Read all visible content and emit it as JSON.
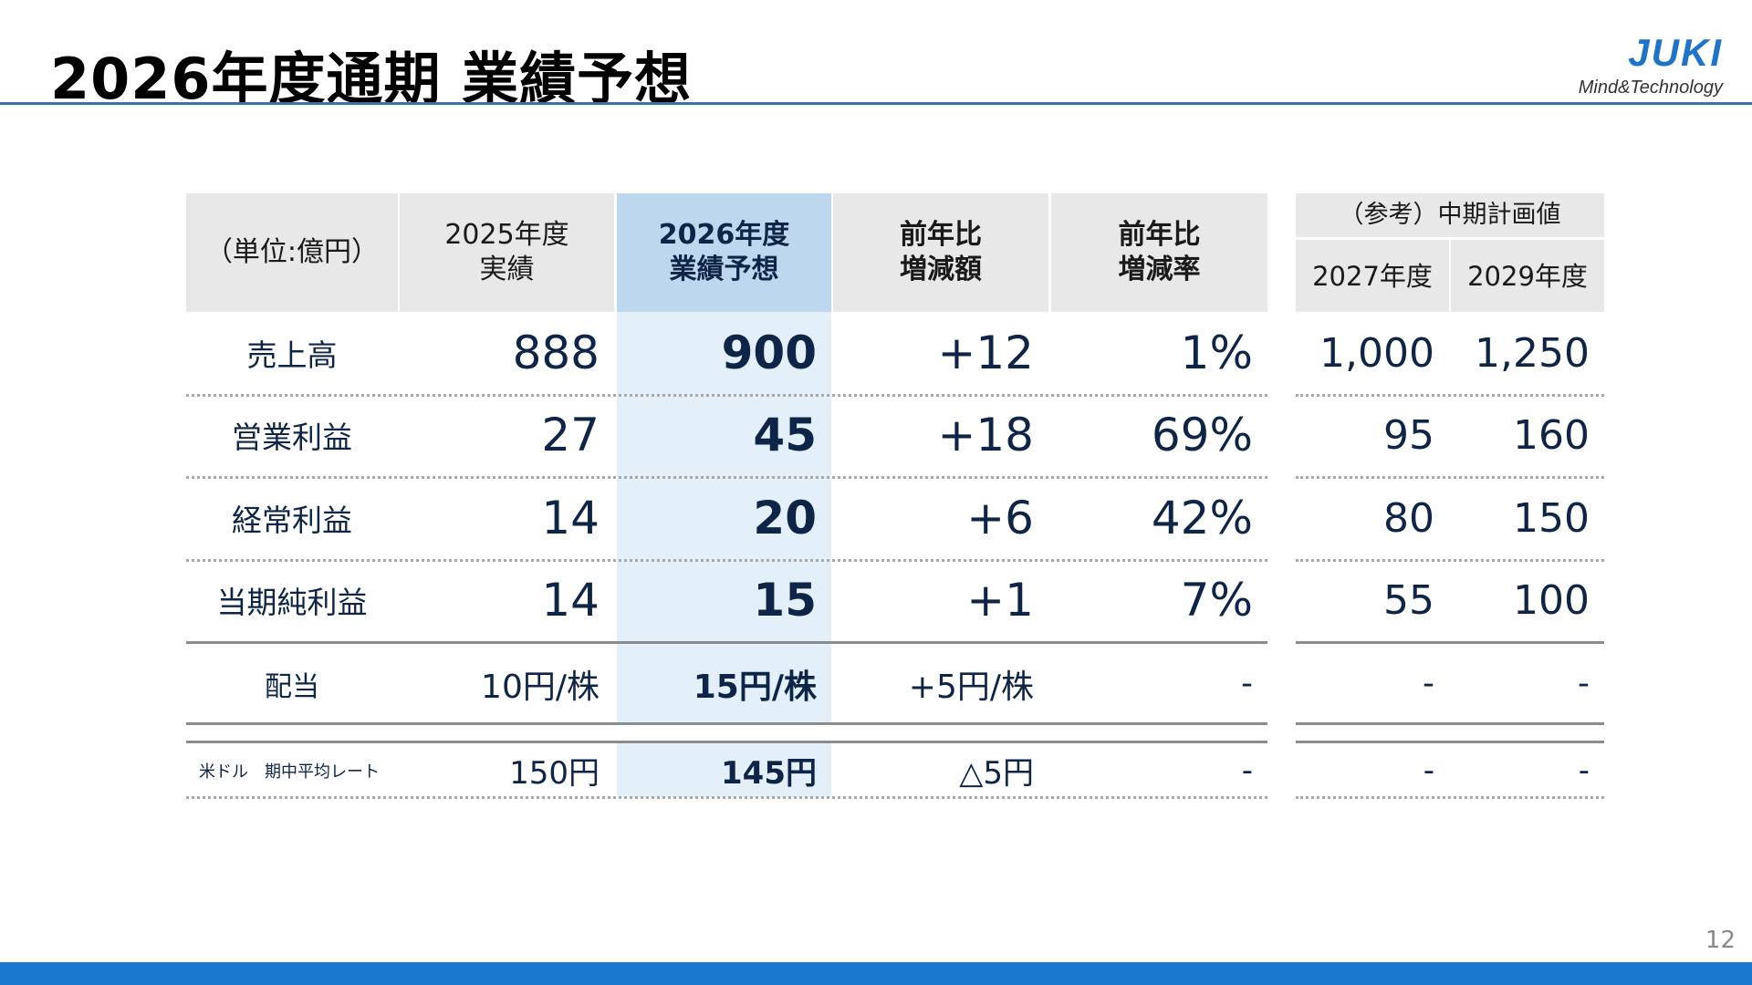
{
  "title": "2026年度通期 業績予想",
  "logo": {
    "brand": "JUKI",
    "tagline": "Mind&Technology",
    "color": "#1f74c9"
  },
  "page_number": "12",
  "colors": {
    "highlight_header": "#bdd7ee",
    "highlight_body": "#e3f0fa",
    "header_bg": "#e8e8e8",
    "accent_bar": "#1a78cf",
    "text": "#0f2547"
  },
  "table": {
    "unit_label": "（単位:億円）",
    "headers": [
      "2025年度\n実績",
      "2026年度\n業績予想",
      "前年比\n増減額",
      "前年比\n増減率"
    ],
    "reference_header": "（参考）中期計画値",
    "reference_years": [
      "2027年度",
      "2029年度"
    ],
    "rows": [
      {
        "label": "売上高",
        "values": [
          "888",
          "900",
          "+12",
          "1%"
        ],
        "reference": [
          "1,000",
          "1,250"
        ]
      },
      {
        "label": "営業利益",
        "values": [
          "27",
          "45",
          "+18",
          "69%"
        ],
        "reference": [
          "95",
          "160"
        ]
      },
      {
        "label": "経常利益",
        "values": [
          "14",
          "20",
          "+6",
          "42%"
        ],
        "reference": [
          "80",
          "150"
        ]
      },
      {
        "label": "当期純利益",
        "values": [
          "14",
          "15",
          "+1",
          "7%"
        ],
        "reference": [
          "55",
          "100"
        ]
      }
    ],
    "dividend": {
      "label": "配当",
      "values": [
        "10円/株",
        "15円/株",
        "+5円/株",
        "-"
      ],
      "reference": [
        "-",
        "-"
      ]
    },
    "fx_rate": {
      "label": "米ドル　期中平均レート",
      "values": [
        "150円",
        "145円",
        "△5円",
        "-"
      ],
      "reference": [
        "-",
        "-"
      ]
    }
  }
}
